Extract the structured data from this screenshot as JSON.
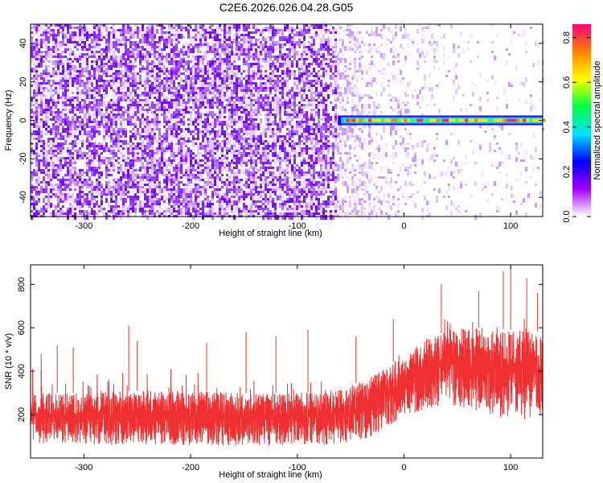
{
  "title": "C2E6.2026.026.04.28.G05",
  "chart_data": [
    {
      "type": "heatmap",
      "name": "spectrogram",
      "xlabel": "Height of straight line (km)",
      "ylabel": "Frequency (Hz)",
      "xlim": [
        -350,
        130
      ],
      "ylim": [
        -50,
        50
      ],
      "xticks": [
        -300,
        -200,
        -100,
        0,
        100
      ],
      "yticks": [
        -40,
        -20,
        0,
        20,
        40
      ],
      "signal_line": {
        "x_start": -62,
        "x_end": 130,
        "frequency": 0
      },
      "noise_boundary_x": -65,
      "colorbar": {
        "label": "Normalized spectral amplitude",
        "range": [
          0.0,
          0.86
        ],
        "ticks": [
          0.0,
          0.2,
          0.4,
          0.6,
          0.8
        ],
        "colors": [
          "#ffffff",
          "#a000ff",
          "#0000ff",
          "#00e0ff",
          "#00ff40",
          "#ffff00",
          "#ff8000",
          "#ff0080"
        ]
      }
    },
    {
      "type": "area",
      "name": "snr",
      "xlabel": "Height of straight line (km)",
      "ylabel": "SNR (10 * v/v)",
      "xlim": [
        -350,
        130
      ],
      "ylim": [
        0,
        890
      ],
      "xticks": [
        -300,
        -200,
        -100,
        0,
        100
      ],
      "yticks": [
        200,
        400,
        600,
        800
      ],
      "color": "#f03030",
      "envelope": {
        "x": [
          -350,
          -300,
          -250,
          -200,
          -150,
          -100,
          -70,
          -50,
          -30,
          0,
          20,
          50,
          80,
          100,
          130
        ],
        "lower": [
          70,
          60,
          60,
          60,
          55,
          60,
          60,
          70,
          100,
          180,
          230,
          240,
          200,
          180,
          170
        ],
        "upper": [
          300,
          300,
          310,
          310,
          300,
          300,
          300,
          330,
          390,
          470,
          550,
          600,
          600,
          590,
          580
        ]
      },
      "peaks": [
        {
          "x": -340,
          "y": 480
        },
        {
          "x": -325,
          "y": 520
        },
        {
          "x": -310,
          "y": 510
        },
        {
          "x": -258,
          "y": 610
        },
        {
          "x": -250,
          "y": 540
        },
        {
          "x": -185,
          "y": 530
        },
        {
          "x": -148,
          "y": 580
        },
        {
          "x": -120,
          "y": 560
        },
        {
          "x": -90,
          "y": 590
        },
        {
          "x": -45,
          "y": 560
        },
        {
          "x": -10,
          "y": 640
        },
        {
          "x": 35,
          "y": 800
        },
        {
          "x": 70,
          "y": 770
        },
        {
          "x": 93,
          "y": 860
        },
        {
          "x": 100,
          "y": 880
        },
        {
          "x": 115,
          "y": 830
        },
        {
          "x": 125,
          "y": 760
        }
      ]
    }
  ]
}
